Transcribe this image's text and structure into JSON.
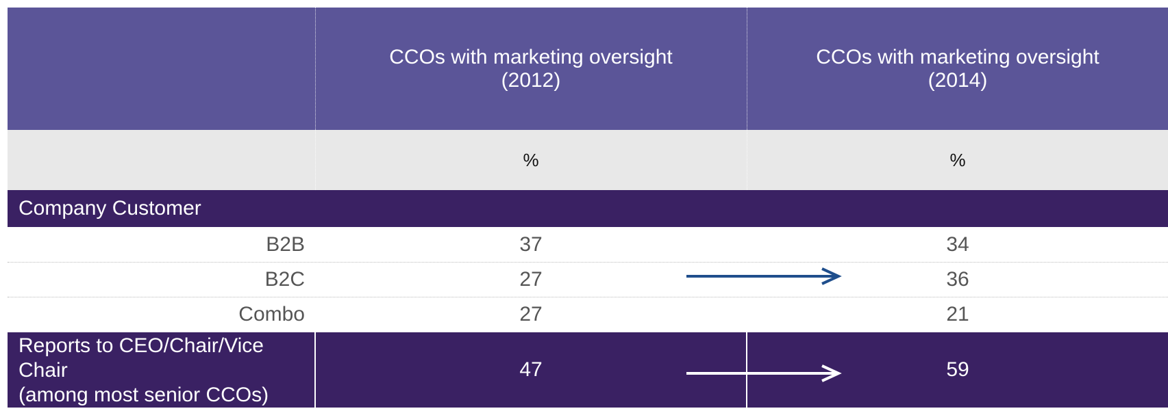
{
  "table": {
    "header": [
      "CCOs with marketing oversight\n(2012)",
      "CCOs with marketing oversight\n(2014)"
    ],
    "units": [
      "%",
      "%"
    ],
    "section": "Company Customer",
    "rows": [
      [
        "B2B",
        "37",
        "34"
      ],
      [
        "B2C",
        "27",
        "36"
      ],
      [
        "Combo",
        "27",
        "21"
      ]
    ],
    "footer_row": [
      "Reports to CEO/Chair/Vice Chair\n(among most senior CCOs)",
      "47",
      "59"
    ]
  }
}
